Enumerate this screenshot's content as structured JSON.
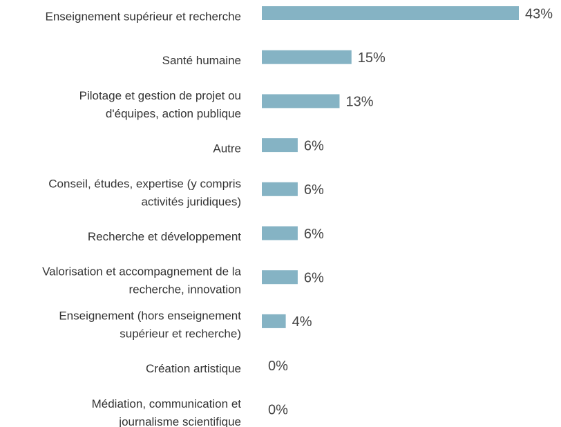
{
  "chart_data": {
    "type": "bar",
    "orientation": "horizontal",
    "color": "#85b3c4",
    "categories": [
      [
        "Enseignement supérieur et recherche"
      ],
      [
        "Santé humaine"
      ],
      [
        "Pilotage et gestion de projet ou",
        "d'équipes, action publique"
      ],
      [
        "Autre"
      ],
      [
        "Conseil, études, expertise (y compris",
        "activités juridiques)"
      ],
      [
        "Recherche et développement"
      ],
      [
        "Valorisation et accompagnement de la",
        "recherche, innovation"
      ],
      [
        "Enseignement (hors enseignement",
        "supérieur et recherche)"
      ],
      [
        "Création artistique"
      ],
      [
        "Médiation, communication et",
        "journalisme scientifique"
      ]
    ],
    "values": [
      43,
      15,
      13,
      6,
      6,
      6,
      6,
      4,
      0,
      0
    ],
    "value_labels": [
      "43%",
      "15%",
      "13%",
      "6%",
      "6%",
      "6%",
      "6%",
      "4%",
      "0%",
      "0%"
    ]
  }
}
